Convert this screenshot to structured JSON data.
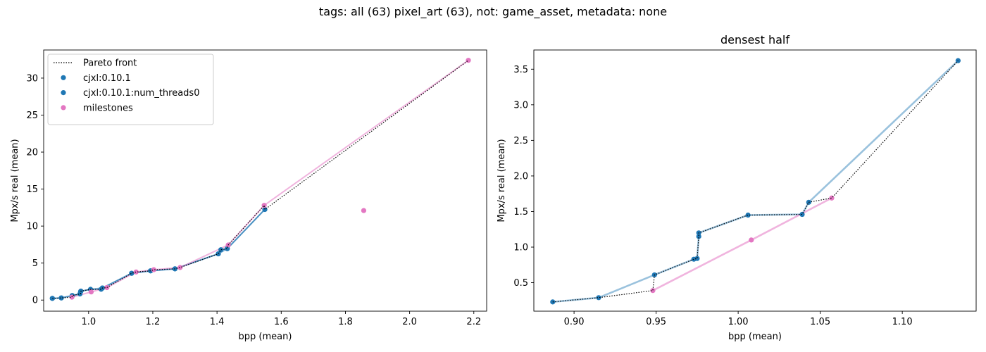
{
  "suptitle": "tags: all (63) pixel_art (63), not: game_asset, metadata: none",
  "colors": {
    "cjxl": "#1f77b4",
    "milestones": "#e377c2",
    "pareto": "#000000"
  },
  "chart_data": [
    {
      "type": "scatter",
      "title": "",
      "xlabel": "bpp (mean)",
      "ylabel": "Mpx/s real (mean)",
      "xlim": [
        0.86,
        2.24
      ],
      "ylim": [
        -1.5,
        33.8
      ],
      "xticks": [
        1.0,
        1.2,
        1.4,
        1.6,
        1.8,
        2.0,
        2.2
      ],
      "xtick_labels": [
        "1.0",
        "1.2",
        "1.4",
        "1.6",
        "1.8",
        "2.0",
        "2.2"
      ],
      "yticks": [
        0,
        5,
        10,
        15,
        20,
        25,
        30
      ],
      "ytick_labels": [
        "0",
        "5",
        "10",
        "15",
        "20",
        "25",
        "30"
      ],
      "grid": false,
      "legend": "upper-left",
      "legend_entries": [
        {
          "label": "Pareto front",
          "kind": "line"
        },
        {
          "label": "cjxl:0.10.1",
          "kind": "marker",
          "color": "#1f77b4"
        },
        {
          "label": "cjxl:0.10.1:num_threads0",
          "kind": "marker",
          "color": "#1f77b4"
        },
        {
          "label": "milestones",
          "kind": "marker",
          "color": "#e377c2"
        }
      ],
      "series": [
        {
          "name": "cjxl:0.10.1",
          "color": "#1f77b4",
          "line": true,
          "x": [
            0.887,
            0.915,
            0.949,
            0.973,
            0.975,
            0.976,
            1.006,
            1.039,
            1.043,
            1.134,
            1.193,
            1.269,
            1.404,
            1.412,
            1.432,
            1.549
          ],
          "y": [
            0.23,
            0.29,
            0.61,
            0.83,
            1.15,
            1.21,
            1.45,
            1.46,
            1.63,
            3.62,
            3.95,
            4.22,
            6.25,
            6.8,
            6.95,
            12.25
          ]
        },
        {
          "name": "cjxl:0.10.1:num_threads0",
          "color": "#1f77b4",
          "line": true,
          "x": [
            0.887,
            0.915,
            0.949,
            0.973,
            0.976,
            1.006,
            1.043,
            1.134,
            1.193,
            1.269,
            1.404,
            1.432,
            1.549
          ],
          "y": [
            0.23,
            0.29,
            0.61,
            0.83,
            1.2,
            1.45,
            1.63,
            3.62,
            3.95,
            4.22,
            6.25,
            6.95,
            12.25
          ]
        },
        {
          "name": "milestones",
          "color": "#e377c2",
          "line": true,
          "x": [
            0.948,
            1.008,
            1.057,
            1.148,
            1.203,
            1.285,
            1.435,
            1.547,
            2.183
          ],
          "y": [
            0.39,
            1.1,
            1.69,
            3.8,
            4.1,
            4.4,
            7.45,
            12.8,
            32.4
          ]
        },
        {
          "name": "milestones",
          "color": "#e377c2",
          "line": false,
          "x": [
            1.857
          ],
          "y": [
            12.1
          ]
        },
        {
          "name": "Pareto front",
          "color": "#000000",
          "dotted": true,
          "x": [
            0.887,
            0.915,
            0.948,
            0.949,
            0.973,
            0.975,
            0.976,
            1.006,
            1.039,
            1.043,
            1.057,
            1.134,
            1.148,
            1.193,
            1.203,
            1.269,
            1.285,
            1.404,
            1.412,
            1.432,
            1.435,
            1.547,
            1.549,
            2.183
          ],
          "y": [
            0.23,
            0.29,
            0.39,
            0.61,
            0.83,
            0.84,
            1.2,
            1.45,
            1.46,
            1.63,
            1.69,
            3.62,
            3.8,
            3.95,
            4.1,
            4.22,
            4.4,
            6.25,
            6.8,
            6.95,
            7.45,
            12.8,
            12.25,
            32.4
          ]
        }
      ]
    },
    {
      "type": "scatter",
      "title": "densest half",
      "xlabel": "bpp (mean)",
      "ylabel": "Mpx/s real (mean)",
      "xlim": [
        0.8755,
        1.145
      ],
      "ylim": [
        0.1,
        3.77
      ],
      "xticks": [
        0.9,
        0.95,
        1.0,
        1.05,
        1.1
      ],
      "xtick_labels": [
        "0.90",
        "0.95",
        "1.00",
        "1.05",
        "1.10"
      ],
      "yticks": [
        0.5,
        1.0,
        1.5,
        2.0,
        2.5,
        3.0,
        3.5
      ],
      "ytick_labels": [
        "0.5",
        "1.0",
        "1.5",
        "2.0",
        "2.5",
        "3.0",
        "3.5"
      ],
      "grid": false,
      "series": [
        {
          "name": "cjxl:0.10.1",
          "color": "#1f77b4",
          "line": true,
          "line_alpha": 0.45,
          "x": [
            0.887,
            0.915,
            0.949,
            0.973,
            0.975,
            0.976,
            0.976,
            1.006,
            1.039,
            1.043,
            1.134
          ],
          "y": [
            0.23,
            0.29,
            0.61,
            0.83,
            0.84,
            1.15,
            1.2,
            1.45,
            1.46,
            1.63,
            3.62
          ]
        },
        {
          "name": "milestones",
          "color": "#e377c2",
          "line": true,
          "line_alpha": 0.55,
          "x": [
            0.948,
            1.008,
            1.057
          ],
          "y": [
            0.39,
            1.1,
            1.69
          ]
        },
        {
          "name": "Pareto front",
          "color": "#000000",
          "dotted": true,
          "x": [
            0.887,
            0.915,
            0.948,
            0.949,
            0.973,
            0.975,
            0.976,
            0.976,
            1.006,
            1.039,
            1.043,
            1.057,
            1.134
          ],
          "y": [
            0.23,
            0.29,
            0.39,
            0.61,
            0.83,
            0.84,
            1.15,
            1.2,
            1.45,
            1.46,
            1.63,
            1.69,
            3.62
          ]
        }
      ]
    }
  ]
}
